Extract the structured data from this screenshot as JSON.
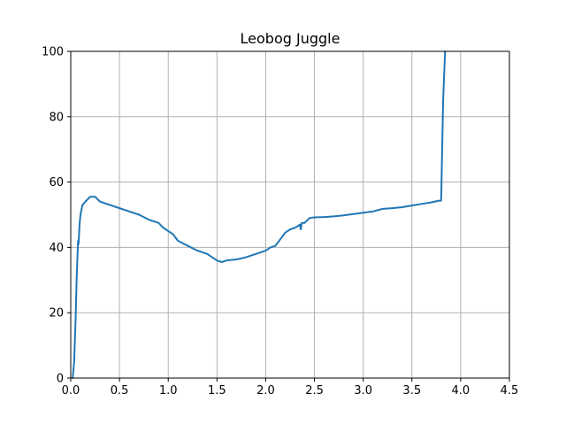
{
  "chart_data": {
    "type": "line",
    "title": "Leobog Juggle",
    "xlabel": "",
    "ylabel": "",
    "xlim": [
      0.0,
      4.5
    ],
    "ylim": [
      0,
      100
    ],
    "grid": true,
    "xticks": [
      0.0,
      0.5,
      1.0,
      1.5,
      2.0,
      2.5,
      3.0,
      3.5,
      4.0,
      4.5
    ],
    "xtick_labels": [
      "0.0",
      "0.5",
      "1.0",
      "1.5",
      "2.0",
      "2.5",
      "3.0",
      "3.5",
      "4.0",
      "4.5"
    ],
    "yticks": [
      0,
      20,
      40,
      60,
      80,
      100
    ],
    "ytick_labels": [
      "0",
      "20",
      "40",
      "60",
      "80",
      "100"
    ],
    "series": [
      {
        "color": "#1f77b4",
        "x": [
          0.02,
          0.035,
          0.05,
          0.06,
          0.07,
          0.075,
          0.08,
          0.085,
          0.09,
          0.1,
          0.12,
          0.15,
          0.2,
          0.25,
          0.3,
          0.4,
          0.5,
          0.6,
          0.7,
          0.8,
          0.9,
          0.95,
          1.0,
          1.05,
          1.1,
          1.2,
          1.3,
          1.4,
          1.5,
          1.55,
          1.6,
          1.7,
          1.8,
          1.9,
          2.0,
          2.05,
          2.1,
          2.15,
          2.2,
          2.25,
          2.3,
          2.33,
          2.35,
          2.36,
          2.37,
          2.4,
          2.45,
          2.5,
          2.6,
          2.7,
          2.8,
          2.9,
          3.0,
          3.1,
          3.2,
          3.3,
          3.4,
          3.5,
          3.6,
          3.7,
          3.78,
          3.8,
          3.82,
          3.84
        ],
        "y": [
          0,
          5,
          18,
          30,
          38,
          42,
          41,
          44,
          47,
          50,
          53,
          54,
          55.5,
          55.5,
          54,
          53,
          52,
          51,
          50,
          48.5,
          47.5,
          46,
          45,
          44,
          42,
          40.5,
          39,
          38,
          36,
          35.5,
          36,
          36.3,
          37,
          38,
          39,
          40,
          40.5,
          42.5,
          44.5,
          45.5,
          46,
          46.5,
          47,
          45.5,
          47.5,
          47.5,
          49,
          49.2,
          49.3,
          49.5,
          49.8,
          50.2,
          50.6,
          51,
          51.8,
          52,
          52.3,
          52.8,
          53.3,
          53.8,
          54.3,
          54.3,
          85,
          100
        ]
      }
    ]
  }
}
